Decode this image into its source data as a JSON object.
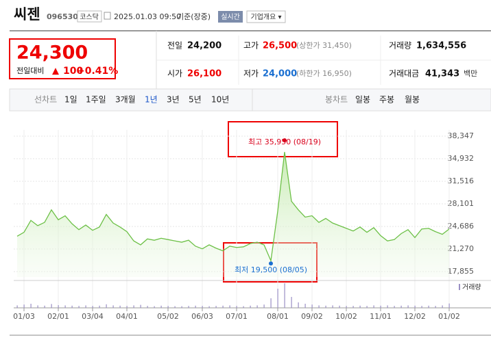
{
  "header": {
    "title": "씨젠",
    "code": "096530",
    "market": "코스닥",
    "datetime": "2025.01.03 09:50",
    "basis": "기준(장중)",
    "realtime": "실시간",
    "company": "기업개요 ▾"
  },
  "price": {
    "current": "24,300",
    "change_label": "전일대비",
    "arrow": "▲",
    "change": "100",
    "change_pct": "+0.41%"
  },
  "quote": {
    "rows": [
      [
        {
          "label": "전일",
          "value": "24,200"
        },
        {
          "label": "고가",
          "value": "26,500",
          "note": "(상한가 31,450)"
        },
        {
          "label": "거래량",
          "value": "1,634,556"
        }
      ],
      [
        {
          "label": "시가",
          "value": "26,100"
        },
        {
          "label": "저가",
          "value": "24,000",
          "note": "(하한가 16,950)"
        },
        {
          "label": "거래대금",
          "value": "41,343",
          "unit": "백만"
        }
      ]
    ]
  },
  "tabs": {
    "line_label": "선차트",
    "line": [
      "1일",
      "1주일",
      "3개월",
      "1년",
      "3년",
      "5년",
      "10년"
    ],
    "selected": "1년",
    "candle_label": "봉차트",
    "candle": [
      "일봉",
      "주봉",
      "월봉"
    ]
  },
  "chart_data": {
    "type": "line",
    "color": "#6cc046",
    "categories": [
      null,
      "01/03",
      null,
      null,
      null,
      null,
      "02/01",
      null,
      null,
      null,
      null,
      "03/04",
      null,
      null,
      null,
      null,
      "04/01",
      null,
      null,
      null,
      null,
      null,
      "05/02",
      null,
      null,
      null,
      null,
      "06/03",
      null,
      null,
      null,
      null,
      "07/01",
      null,
      null,
      null,
      null,
      null,
      "08/01",
      null,
      null,
      null,
      null,
      "09/02",
      null,
      null,
      null,
      null,
      "10/02",
      null,
      null,
      null,
      null,
      "11/01",
      null,
      null,
      null,
      null,
      "12/02",
      null,
      null,
      null,
      null,
      "01/02"
    ],
    "values": [
      23200,
      23800,
      25600,
      24800,
      25300,
      27200,
      25700,
      26300,
      25100,
      24200,
      24900,
      24100,
      24600,
      26500,
      25200,
      24600,
      23900,
      22500,
      21900,
      22800,
      22600,
      22900,
      22700,
      22500,
      22300,
      22600,
      21700,
      21300,
      21900,
      21400,
      21000,
      21700,
      21500,
      21600,
      22100,
      22300,
      21900,
      19500,
      27000,
      35950,
      28500,
      27200,
      26100,
      26300,
      25300,
      25900,
      25200,
      24800,
      24400,
      24000,
      24600,
      23800,
      24500,
      23300,
      22500,
      22700,
      23600,
      24200,
      23000,
      24300,
      24400,
      23900,
      23500,
      24300
    ],
    "ylim": [
      17855,
      38347
    ],
    "yticks": [
      {
        "value": 17855,
        "label": "17,855"
      },
      {
        "value": 21270,
        "label": "21,270"
      },
      {
        "value": 24686,
        "label": "24,686"
      },
      {
        "value": 28101,
        "label": "28,101"
      },
      {
        "value": 31516,
        "label": "31,516"
      },
      {
        "value": 34932,
        "label": "34,932"
      },
      {
        "value": 38347,
        "label": "38,347"
      }
    ],
    "grid": true,
    "high_label": "최고 35,950 (08/19)",
    "high_color": "#d9001b",
    "low_label": "최저 19,500 (08/05)",
    "low_color": "#1a6fd1",
    "volume": {
      "name": "거래량",
      "color": "#9a8fc4",
      "vlim": [
        0,
        10000000
      ],
      "values": [
        900000,
        1200000,
        1500000,
        900000,
        800000,
        1400000,
        1000000,
        900000,
        800000,
        700000,
        900000,
        700000,
        800000,
        1300000,
        900000,
        800000,
        700000,
        900000,
        1100000,
        700000,
        600000,
        800000,
        700000,
        600000,
        600000,
        700000,
        800000,
        700000,
        600000,
        700000,
        800000,
        900000,
        700000,
        600000,
        800000,
        900000,
        1200000,
        3500000,
        7000000,
        9000000,
        4000000,
        2000000,
        1500000,
        1200000,
        900000,
        800000,
        900000,
        800000,
        700000,
        700000,
        800000,
        700000,
        900000,
        800000,
        900000,
        700000,
        800000,
        900000,
        800000,
        700000,
        800000,
        700000,
        900000,
        1600000
      ]
    }
  }
}
